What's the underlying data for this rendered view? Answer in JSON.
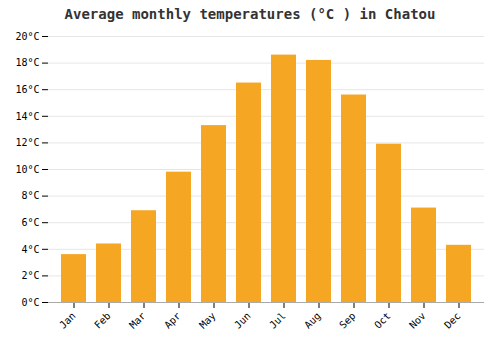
{
  "chart_data": {
    "type": "bar",
    "title": "Average monthly temperatures (°C ) in Chatou",
    "categories": [
      "Jan",
      "Feb",
      "Mar",
      "Apr",
      "May",
      "Jun",
      "Jul",
      "Aug",
      "Sep",
      "Oct",
      "Nov",
      "Dec"
    ],
    "values": [
      3.6,
      4.4,
      6.9,
      9.8,
      13.3,
      16.5,
      18.6,
      18.2,
      15.6,
      11.9,
      7.1,
      4.3
    ],
    "color": "#F5A623",
    "ylim": [
      0,
      20
    ],
    "yticks": [
      {
        "value": 0,
        "label": "0°C"
      },
      {
        "value": 2,
        "label": "2°C"
      },
      {
        "value": 4,
        "label": "4°C"
      },
      {
        "value": 6,
        "label": "6°C"
      },
      {
        "value": 8,
        "label": "8°C"
      },
      {
        "value": 10,
        "label": "10°C"
      },
      {
        "value": 12,
        "label": "12°C"
      },
      {
        "value": 14,
        "label": "14°C"
      },
      {
        "value": 16,
        "label": "16°C"
      },
      {
        "value": 18,
        "label": "18°C"
      },
      {
        "value": 20,
        "label": "20°C"
      }
    ],
    "grid": true
  }
}
